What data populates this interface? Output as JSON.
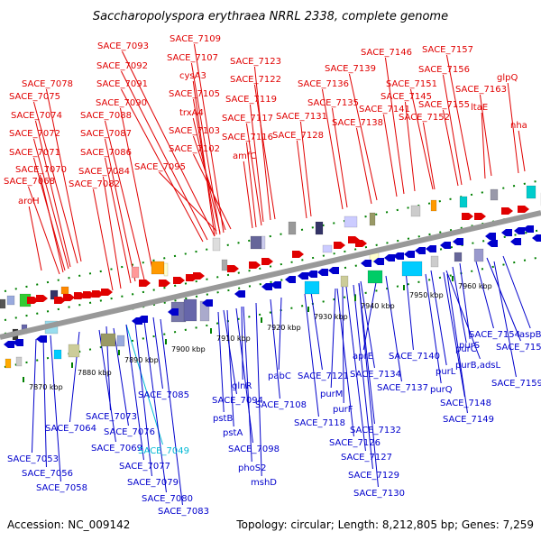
{
  "title": "Saccharopolyspora erythraea NRRL 2338, complete genome",
  "footer": {
    "accession": "Accession: NC_009142",
    "stats": "Topology: circular; Length: 8,212,805 bp; Genes: 7,259"
  },
  "colors": {
    "forward": "#e00000",
    "reverse": "#0000cc",
    "highlight": "#00b8d4",
    "backbone": "#999999",
    "ticks": "#008000"
  },
  "ticks": [
    "7870 kbp",
    "7880 kbp",
    "7890 kbp",
    "7900 kbp",
    "7910 kbp",
    "7920 kbp",
    "7930 kbp",
    "7940 kbp",
    "7950 kbp",
    "7960 kbp"
  ],
  "top_labels": [
    "SACE_7109",
    "SACE_7093",
    "SACE_7107",
    "SACE_7092",
    "SACE_7091",
    "SACE_7078",
    "SACE_7075",
    "SACE_7090",
    "SACE_7074",
    "SACE_7088",
    "SACE_7087",
    "SACE_7072",
    "SACE_7086",
    "SACE_7071",
    "SACE_7084",
    "SACE_7070",
    "SACE_7082",
    "SACE_7068",
    "SACE_7095",
    "cysA3",
    "SACE_7105",
    "trxA4",
    "SACE_7103",
    "SACE_7102",
    "aroH",
    "SACE_7123",
    "SACE_7122",
    "SACE_7119",
    "SACE_7117",
    "SACE_7116",
    "amfC",
    "SACE_7146",
    "SACE_7157",
    "SACE_7139",
    "SACE_7136",
    "SACE_7135",
    "SACE_7131",
    "SACE_7128",
    "SACE_7145",
    "SACE_7141",
    "SACE_7138",
    "SACE_7156",
    "SACE_7151",
    "SACE_7155",
    "SACE_7152",
    "SACE_7163",
    "ltaE",
    "glpQ",
    "nha"
  ],
  "bottom_labels": [
    "aspB",
    "SACE_7158",
    "SACE_7154",
    "purS",
    "purC",
    "purB,adsL",
    "SACE_7140",
    "purL",
    "purQ",
    "SACE_7159",
    "SACE_7148",
    "SACE_7149",
    "aprE",
    "SACE_7134",
    "SACE_7137",
    "SACE_7121",
    "purM",
    "purF",
    "SACE_7132",
    "SACE_7126",
    "SACE_7127",
    "SACE_7129",
    "SACE_7130",
    "SACE_7118",
    "pabC",
    "SACE_7108",
    "glnR",
    "SACE_7094",
    "pstB",
    "pstA",
    "SACE_7098",
    "phoS2",
    "mshD",
    "SACE_7085",
    "SACE_7073",
    "SACE_7064",
    "SACE_7076",
    "SACE_7069",
    "SACE_7049",
    "SACE_7077",
    "SACE_7079",
    "SACE_7080",
    "SACE_7083",
    "SACE_7053",
    "SACE_7056",
    "SACE_7058"
  ]
}
